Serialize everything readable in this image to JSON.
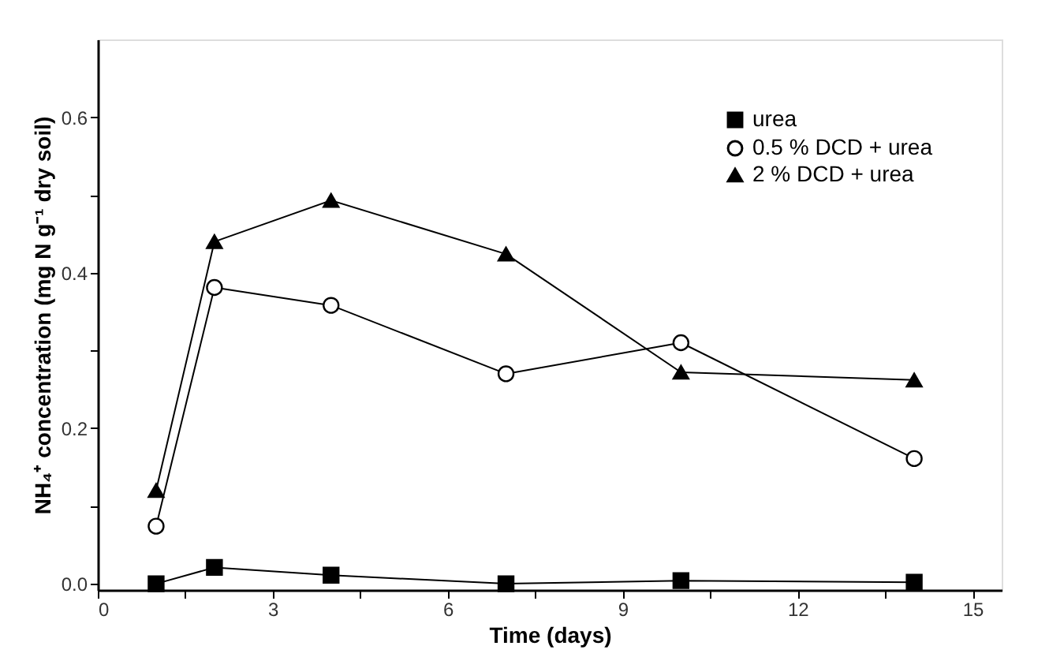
{
  "chart_data": {
    "type": "line",
    "xlabel": "Time (days)",
    "ylabel": "NH₄⁺ concentration (mg N g⁻¹ dry soil)",
    "x": [
      1,
      2,
      4,
      7,
      10,
      14
    ],
    "series": [
      {
        "name": "urea",
        "color": "#000000",
        "marker": "square",
        "values": [
          0.0,
          0.021,
          0.011,
          0.0,
          0.004,
          0.002
        ]
      },
      {
        "name": "0.5 % DCD + urea",
        "color": "#000000",
        "marker": "circle",
        "values": [
          0.074,
          0.381,
          0.358,
          0.27,
          0.31,
          0.161
        ]
      },
      {
        "name": "2 % DCD + urea",
        "color": "#000000",
        "marker": "triangle",
        "values": [
          0.12,
          0.44,
          0.493,
          0.424,
          0.272,
          0.262
        ]
      }
    ],
    "xlim": [
      0,
      15.5
    ],
    "xticks": [
      0,
      {
        "value": 1.5,
        "label": null
      },
      3,
      {
        "value": 4.5,
        "label": null
      },
      6,
      {
        "value": 7.5,
        "label": null
      },
      9,
      {
        "value": 10.5,
        "label": null
      },
      12,
      {
        "value": 13.5,
        "label": null
      },
      15
    ],
    "ylim": [
      -0.008,
      0.7
    ],
    "yticks": [
      {
        "value": 0,
        "label": "0.0"
      },
      {
        "value": 0.1,
        "label": null
      },
      0.2,
      {
        "value": 0.3,
        "label": null
      },
      0.4,
      {
        "value": 0.5,
        "label": null
      },
      0.6
    ],
    "grid": false,
    "legend": "top right",
    "line_style": "solid"
  }
}
